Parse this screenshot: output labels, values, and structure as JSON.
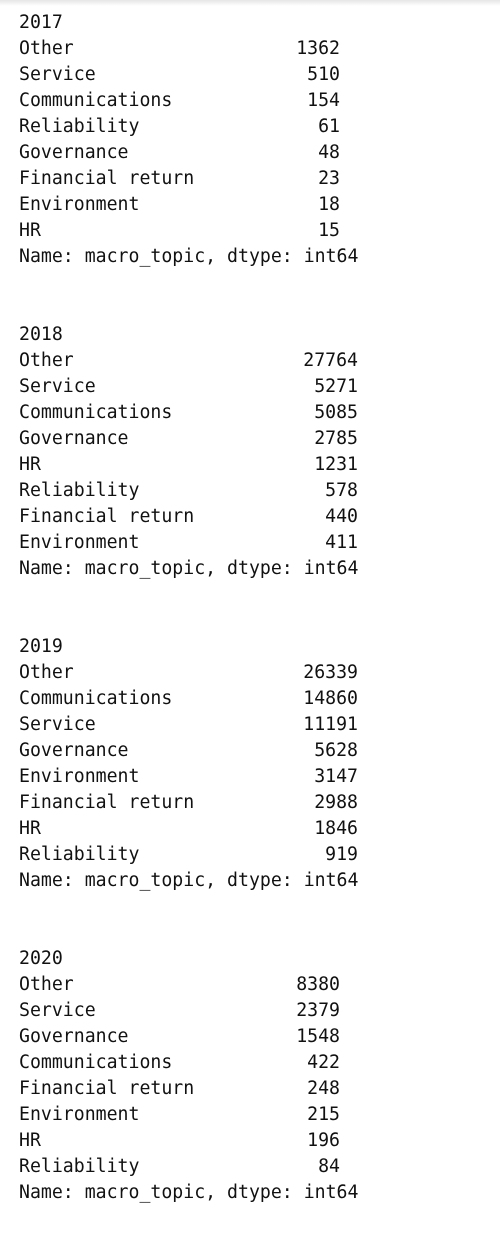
{
  "series": [
    {
      "year": "2017",
      "rows": [
        {
          "label": "Other",
          "value": "1362"
        },
        {
          "label": "Service",
          "value": "510"
        },
        {
          "label": "Communications",
          "value": "154"
        },
        {
          "label": "Reliability",
          "value": "61"
        },
        {
          "label": "Governance",
          "value": "48"
        },
        {
          "label": "Financial return",
          "value": "23"
        },
        {
          "label": "Environment",
          "value": "18"
        },
        {
          "label": "HR",
          "value": "15"
        }
      ],
      "footer": "Name: macro_topic, dtype: int64"
    },
    {
      "year": "2018",
      "rows": [
        {
          "label": "Other",
          "value": "27764"
        },
        {
          "label": "Service",
          "value": "5271"
        },
        {
          "label": "Communications",
          "value": "5085"
        },
        {
          "label": "Governance",
          "value": "2785"
        },
        {
          "label": "HR",
          "value": "1231"
        },
        {
          "label": "Reliability",
          "value": "578"
        },
        {
          "label": "Financial return",
          "value": "440"
        },
        {
          "label": "Environment",
          "value": "411"
        }
      ],
      "footer": "Name: macro_topic, dtype: int64"
    },
    {
      "year": "2019",
      "rows": [
        {
          "label": "Other",
          "value": "26339"
        },
        {
          "label": "Communications",
          "value": "14860"
        },
        {
          "label": "Service",
          "value": "11191"
        },
        {
          "label": "Governance",
          "value": "5628"
        },
        {
          "label": "Environment",
          "value": "3147"
        },
        {
          "label": "Financial return",
          "value": "2988"
        },
        {
          "label": "HR",
          "value": "1846"
        },
        {
          "label": "Reliability",
          "value": "919"
        }
      ],
      "footer": "Name: macro_topic, dtype: int64"
    },
    {
      "year": "2020",
      "rows": [
        {
          "label": "Other",
          "value": "8380"
        },
        {
          "label": "Service",
          "value": "2379"
        },
        {
          "label": "Governance",
          "value": "1548"
        },
        {
          "label": "Communications",
          "value": "422"
        },
        {
          "label": "Financial return",
          "value": "248"
        },
        {
          "label": "Environment",
          "value": "215"
        },
        {
          "label": "HR",
          "value": "196"
        },
        {
          "label": "Reliability",
          "value": "84"
        }
      ],
      "footer": "Name: macro_topic, dtype: int64"
    }
  ]
}
